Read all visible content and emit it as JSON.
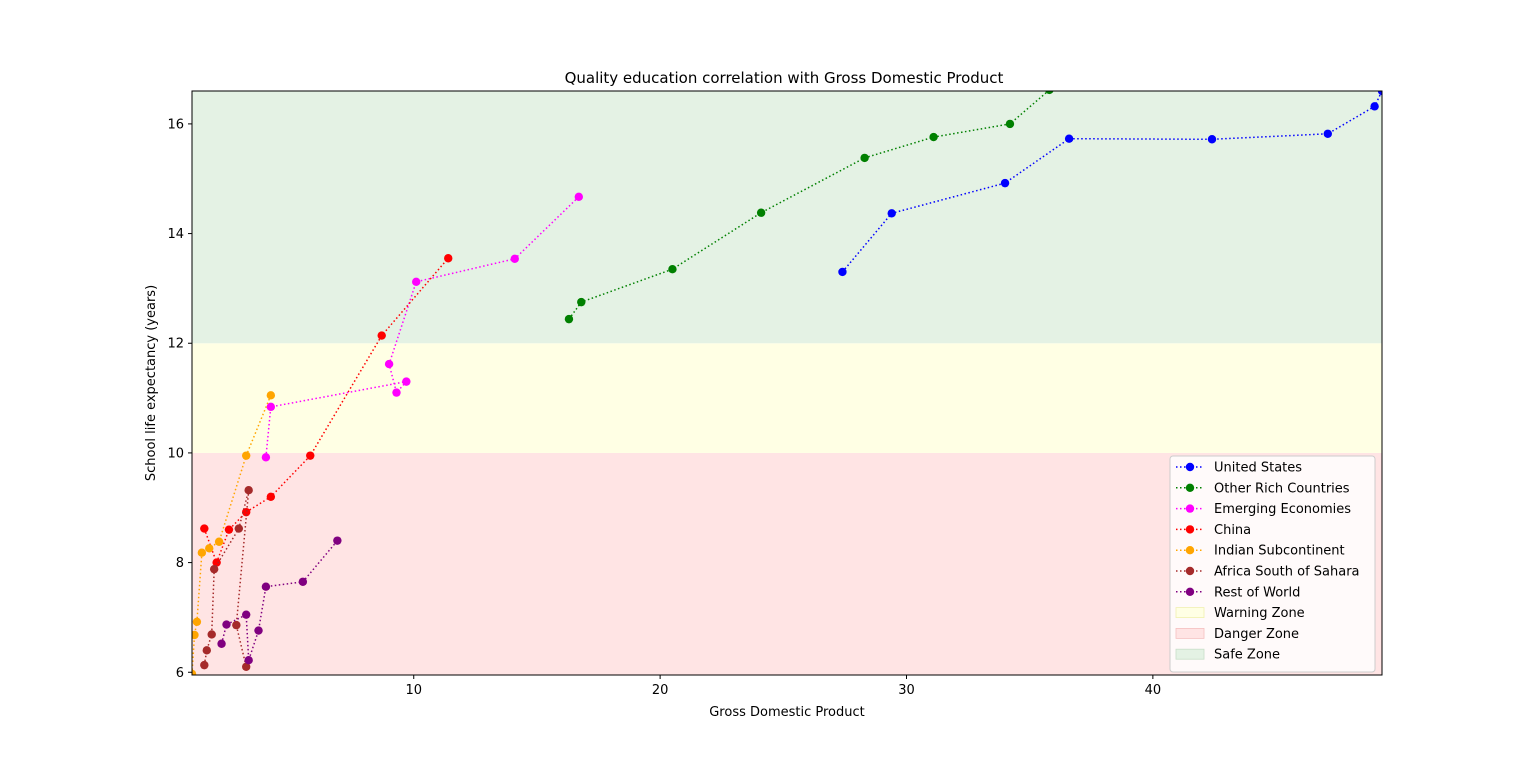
{
  "chart_data": {
    "type": "line",
    "title": "Quality education correlation with Gross Domestic Product",
    "xlabel": "Gross Domestic Product",
    "ylabel": "School life expectancy (years)",
    "xlim": [
      1.0,
      49.3
    ],
    "ylim": [
      5.95,
      16.6
    ],
    "xticks": [
      10,
      20,
      30,
      40
    ],
    "yticks": [
      6,
      8,
      10,
      12,
      14,
      16
    ],
    "grid": false,
    "legend_position": "lower-right",
    "zones": [
      {
        "name": "Danger Zone",
        "y_from": 5.95,
        "y_to": 10,
        "color": "#ffe4e4"
      },
      {
        "name": "Warning Zone",
        "y_from": 10,
        "y_to": 12,
        "color": "#ffffe4"
      },
      {
        "name": "Safe Zone",
        "y_from": 12,
        "y_to": 16.6,
        "color": "#e4f2e4"
      }
    ],
    "series": [
      {
        "name": "United States",
        "color": "#0000ff",
        "points": [
          [
            27.4,
            13.3
          ],
          [
            29.4,
            14.37
          ],
          [
            34.0,
            14.92
          ],
          [
            36.6,
            15.73
          ],
          [
            42.4,
            15.72
          ],
          [
            47.1,
            15.82
          ],
          [
            49.0,
            16.32
          ],
          [
            49.3,
            16.6
          ]
        ]
      },
      {
        "name": "Other Rich Countries",
        "color": "#008000",
        "points": [
          [
            16.3,
            12.44
          ],
          [
            16.8,
            12.75
          ],
          [
            20.5,
            13.35
          ],
          [
            24.1,
            14.38
          ],
          [
            28.3,
            15.38
          ],
          [
            31.1,
            15.76
          ],
          [
            34.2,
            16.0
          ],
          [
            35.8,
            16.62
          ]
        ]
      },
      {
        "name": "Emerging Economies",
        "color": "#ff00ff",
        "points": [
          [
            4.0,
            9.92
          ],
          [
            4.2,
            10.84
          ],
          [
            9.7,
            11.3
          ],
          [
            9.3,
            11.1
          ],
          [
            9.0,
            11.62
          ],
          [
            10.1,
            13.12
          ],
          [
            14.1,
            13.54
          ],
          [
            16.7,
            14.67
          ]
        ]
      },
      {
        "name": "China",
        "color": "#ff0000",
        "points": [
          [
            1.5,
            8.62
          ],
          [
            2.0,
            8.0
          ],
          [
            2.5,
            8.6
          ],
          [
            3.2,
            8.92
          ],
          [
            4.2,
            9.2
          ],
          [
            5.8,
            9.95
          ],
          [
            8.7,
            12.14
          ],
          [
            11.4,
            13.55
          ]
        ]
      },
      {
        "name": "Indian Subcontinent",
        "color": "#ffa500",
        "points": [
          [
            1.0,
            5.97
          ],
          [
            1.1,
            6.68
          ],
          [
            1.2,
            6.92
          ],
          [
            1.4,
            8.18
          ],
          [
            1.7,
            8.26
          ],
          [
            2.1,
            8.38
          ],
          [
            3.2,
            9.95
          ],
          [
            4.2,
            11.05
          ]
        ]
      },
      {
        "name": "Africa South of Sahara",
        "color": "#a52a2a",
        "points": [
          [
            1.5,
            6.13
          ],
          [
            1.6,
            6.4
          ],
          [
            1.8,
            6.69
          ],
          [
            1.9,
            7.88
          ],
          [
            2.9,
            8.62
          ],
          [
            3.3,
            9.32
          ],
          [
            2.8,
            6.86
          ],
          [
            3.2,
            6.1
          ]
        ]
      },
      {
        "name": "Rest of World",
        "color": "#800080",
        "points": [
          [
            2.2,
            6.52
          ],
          [
            2.4,
            6.87
          ],
          [
            3.2,
            7.05
          ],
          [
            3.3,
            6.22
          ],
          [
            3.7,
            6.76
          ],
          [
            4.0,
            7.56
          ],
          [
            5.5,
            7.65
          ],
          [
            6.9,
            8.4
          ]
        ]
      }
    ]
  }
}
